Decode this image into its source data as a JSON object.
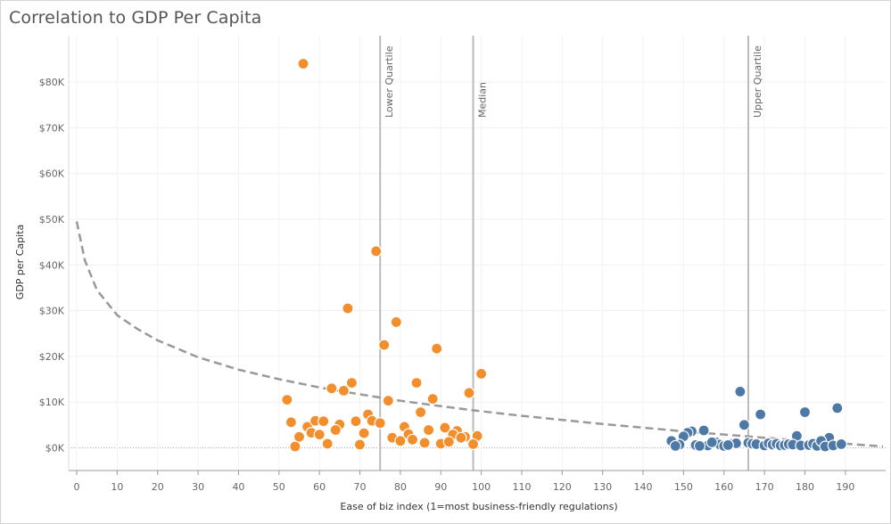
{
  "chart_data": {
    "type": "scatter",
    "title": "Correlation to GDP Per Capita",
    "xlabel": "Ease of biz index (1=most business-friendly regulations)",
    "ylabel": "GDP per Capita",
    "xlim": [
      -3,
      198
    ],
    "ylim": [
      -4000,
      88000
    ],
    "x_ticks": [
      0,
      10,
      20,
      30,
      40,
      50,
      60,
      70,
      80,
      90,
      100,
      110,
      120,
      130,
      140,
      150,
      160,
      170,
      180,
      190
    ],
    "x_tick_labels": [
      "0",
      "10",
      "20",
      "30",
      "40",
      "50",
      "60",
      "70",
      "80",
      "90",
      "100",
      "110",
      "120",
      "130",
      "140",
      "150",
      "160",
      "170",
      "180",
      "190"
    ],
    "y_ticks": [
      0,
      10000,
      20000,
      30000,
      40000,
      50000,
      60000,
      70000,
      80000
    ],
    "y_tick_labels": [
      "$0K",
      "$10K",
      "$20K",
      "$30K",
      "$40K",
      "$50K",
      "$60K",
      "$70K",
      "$80K"
    ],
    "grid": true,
    "colors": {
      "orange": "#f28e2b",
      "blue": "#4e79a7",
      "trend": "#999999",
      "refline": "#bbbbbb"
    },
    "reference_lines": [
      {
        "label": "Lower Quartile",
        "x": 75
      },
      {
        "label": "Median",
        "x": 98
      },
      {
        "label": "Upper Quartile",
        "x": 166
      }
    ],
    "trend_line": {
      "style": "dashed",
      "x": [
        0,
        2,
        5,
        10,
        15,
        20,
        30,
        40,
        50,
        60,
        70,
        80,
        90,
        100,
        110,
        120,
        130,
        140,
        150,
        160,
        170,
        180,
        190,
        200
      ],
      "y": [
        49500,
        41000,
        34500,
        29000,
        26000,
        23500,
        19800,
        17100,
        15000,
        13200,
        11700,
        10300,
        9100,
        8000,
        7000,
        6100,
        5200,
        4400,
        3600,
        2900,
        2200,
        1500,
        900,
        300
      ]
    },
    "series": [
      {
        "color": "orange",
        "points": [
          [
            56,
            84000
          ],
          [
            74,
            43000
          ],
          [
            67,
            30500
          ],
          [
            79,
            27500
          ],
          [
            76,
            22500
          ],
          [
            89,
            21700
          ],
          [
            100,
            16200
          ],
          [
            63,
            13000
          ],
          [
            66,
            12500
          ],
          [
            68,
            14200
          ],
          [
            84,
            14200
          ],
          [
            97,
            12000
          ],
          [
            52,
            10500
          ],
          [
            77,
            10300
          ],
          [
            88,
            10700
          ],
          [
            85,
            7800
          ],
          [
            72,
            7300
          ],
          [
            53,
            5600
          ],
          [
            57,
            4600
          ],
          [
            59,
            5900
          ],
          [
            61,
            5800
          ],
          [
            65,
            5100
          ],
          [
            69,
            5800
          ],
          [
            73,
            5900
          ],
          [
            75,
            5400
          ],
          [
            81,
            4600
          ],
          [
            91,
            4400
          ],
          [
            94,
            3700
          ],
          [
            58,
            3300
          ],
          [
            60,
            2900
          ],
          [
            64,
            3900
          ],
          [
            71,
            3200
          ],
          [
            78,
            2200
          ],
          [
            82,
            3000
          ],
          [
            87,
            3900
          ],
          [
            93,
            2900
          ],
          [
            96,
            2400
          ],
          [
            99,
            2600
          ],
          [
            55,
            2400
          ],
          [
            62,
            900
          ],
          [
            70,
            700
          ],
          [
            80,
            1500
          ],
          [
            83,
            1800
          ],
          [
            86,
            1100
          ],
          [
            90,
            900
          ],
          [
            92,
            1300
          ],
          [
            95,
            2200
          ],
          [
            98,
            800
          ],
          [
            54,
            300
          ]
        ]
      },
      {
        "color": "blue",
        "points": [
          [
            164,
            12300
          ],
          [
            188,
            8700
          ],
          [
            180,
            7800
          ],
          [
            169,
            7300
          ],
          [
            165,
            5000
          ],
          [
            155,
            3800
          ],
          [
            152,
            3600
          ],
          [
            151,
            3300
          ],
          [
            150,
            2500
          ],
          [
            178,
            2600
          ],
          [
            186,
            2200
          ],
          [
            147,
            1500
          ],
          [
            149,
            700
          ],
          [
            153,
            600
          ],
          [
            156,
            500
          ],
          [
            158,
            1200
          ],
          [
            159,
            700
          ],
          [
            160,
            400
          ],
          [
            162,
            900
          ],
          [
            163,
            1000
          ],
          [
            166,
            1100
          ],
          [
            167,
            900
          ],
          [
            168,
            800
          ],
          [
            170,
            500
          ],
          [
            171,
            1000
          ],
          [
            172,
            700
          ],
          [
            173,
            900
          ],
          [
            174,
            500
          ],
          [
            175,
            600
          ],
          [
            176,
            800
          ],
          [
            177,
            700
          ],
          [
            179,
            500
          ],
          [
            181,
            600
          ],
          [
            182,
            900
          ],
          [
            183,
            400
          ],
          [
            184,
            1500
          ],
          [
            185,
            300
          ],
          [
            187,
            500
          ],
          [
            189,
            800
          ],
          [
            148,
            400
          ],
          [
            154,
            400
          ],
          [
            157,
            1200
          ],
          [
            161,
            600
          ]
        ]
      }
    ]
  }
}
